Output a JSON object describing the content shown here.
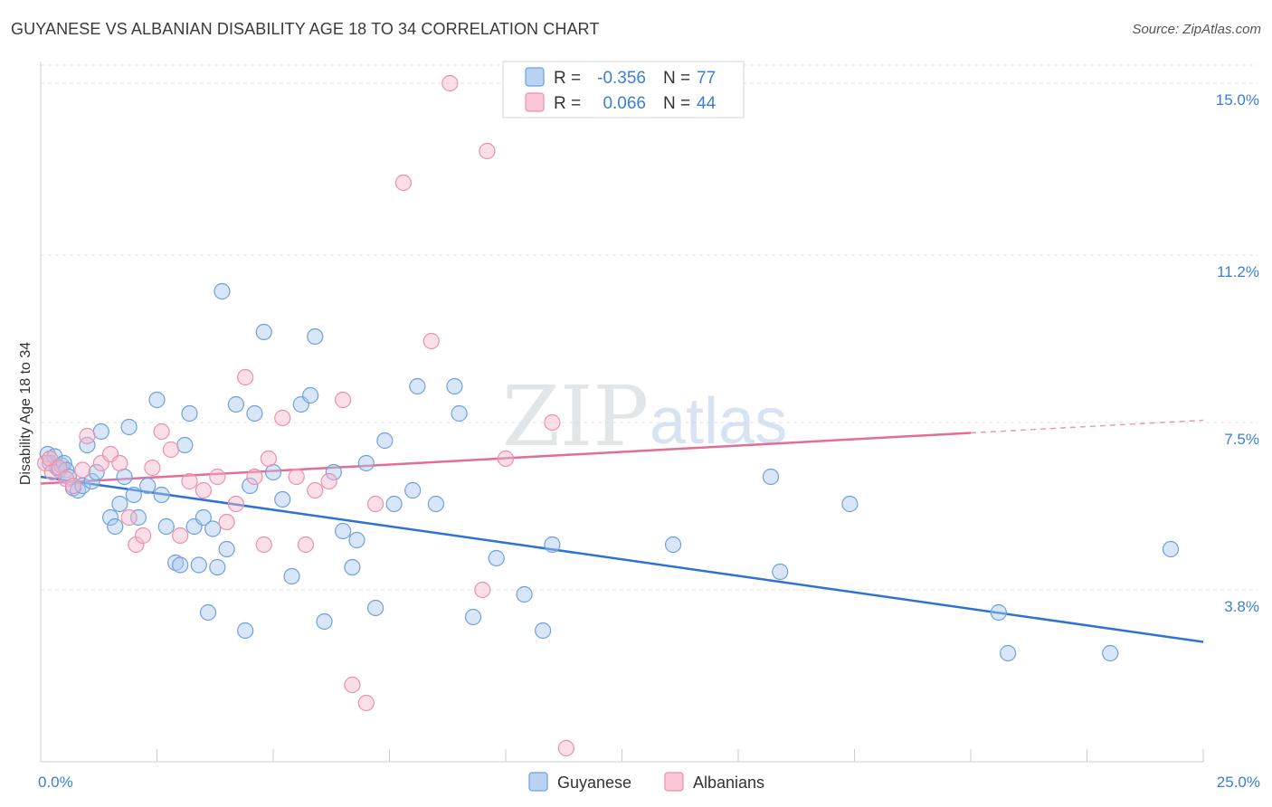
{
  "title": "GUYANESE VS ALBANIAN DISABILITY AGE 18 TO 34 CORRELATION CHART",
  "source": "Source: ZipAtlas.com",
  "colors": {
    "guyanese_fill": "#a9c8f0",
    "guyanese_stroke": "#6fa0dd",
    "guyanese_line": "#2e73d3",
    "albanians_fill": "#f7b9cc",
    "albanians_stroke": "#ec8fab",
    "albanians_line": "#e46d95",
    "tick_text": "#3b7fd4",
    "grid": "#e3e3e3"
  },
  "chart_data": {
    "type": "scatter",
    "title": "GUYANESE VS ALBANIAN DISABILITY AGE 18 TO 34 CORRELATION CHART",
    "xlabel": "",
    "ylabel": "Disability Age 18 to 34",
    "xlim": [
      0,
      25
    ],
    "ylim": [
      0,
      15.4
    ],
    "x_tick_labels": [
      {
        "value": 0,
        "label": "0.0%"
      },
      {
        "value": 25,
        "label": "25.0%"
      }
    ],
    "y_ticks": [
      {
        "value": 3.8,
        "label": "3.8%"
      },
      {
        "value": 7.5,
        "label": "7.5%"
      },
      {
        "value": 11.2,
        "label": "11.2%"
      },
      {
        "value": 15.0,
        "label": "15.0%"
      }
    ],
    "x_minor_ticks": [
      2.5,
      5,
      7.5,
      10,
      12.5,
      15,
      17.5,
      20,
      22.5,
      25
    ],
    "watermark": {
      "part1": "ZIP",
      "part2": "atlas"
    },
    "legend": {
      "rows": [
        {
          "r_label": "R =",
          "r_value": "-0.356",
          "n_label": "N =",
          "n_value": "77"
        },
        {
          "r_label": "R =",
          "r_value": "0.066",
          "n_label": "N =",
          "n_value": "44"
        }
      ]
    },
    "series": [
      {
        "name": "Guyanese",
        "points": [
          [
            0.15,
            6.8
          ],
          [
            0.2,
            6.6
          ],
          [
            0.3,
            6.75
          ],
          [
            0.35,
            6.5
          ],
          [
            0.4,
            6.45
          ],
          [
            0.45,
            6.55
          ],
          [
            0.5,
            6.6
          ],
          [
            0.55,
            6.45
          ],
          [
            0.6,
            6.3
          ],
          [
            0.7,
            6.05
          ],
          [
            0.8,
            6.0
          ],
          [
            0.9,
            6.1
          ],
          [
            1.0,
            7.0
          ],
          [
            1.1,
            6.2
          ],
          [
            1.2,
            6.4
          ],
          [
            1.3,
            7.3
          ],
          [
            1.5,
            5.4
          ],
          [
            1.6,
            5.2
          ],
          [
            1.7,
            5.7
          ],
          [
            1.8,
            6.3
          ],
          [
            1.9,
            7.4
          ],
          [
            2.0,
            5.9
          ],
          [
            2.1,
            5.4
          ],
          [
            2.3,
            6.1
          ],
          [
            2.5,
            8.0
          ],
          [
            2.6,
            5.9
          ],
          [
            2.7,
            5.2
          ],
          [
            2.9,
            4.4
          ],
          [
            3.0,
            4.35
          ],
          [
            3.1,
            7.0
          ],
          [
            3.2,
            7.7
          ],
          [
            3.3,
            5.2
          ],
          [
            3.4,
            4.35
          ],
          [
            3.5,
            5.4
          ],
          [
            3.6,
            3.3
          ],
          [
            3.7,
            5.15
          ],
          [
            3.8,
            4.3
          ],
          [
            4.0,
            4.7
          ],
          [
            4.2,
            7.9
          ],
          [
            4.4,
            2.9
          ],
          [
            4.5,
            6.1
          ],
          [
            4.6,
            7.7
          ],
          [
            4.8,
            9.5
          ],
          [
            5.0,
            6.4
          ],
          [
            5.2,
            5.8
          ],
          [
            5.4,
            4.1
          ],
          [
            5.6,
            7.9
          ],
          [
            5.8,
            8.1
          ],
          [
            5.9,
            9.4
          ],
          [
            6.1,
            3.1
          ],
          [
            6.3,
            6.4
          ],
          [
            6.5,
            5.1
          ],
          [
            6.7,
            4.3
          ],
          [
            6.8,
            4.9
          ],
          [
            7.0,
            6.6
          ],
          [
            7.2,
            3.4
          ],
          [
            7.4,
            7.1
          ],
          [
            7.6,
            5.7
          ],
          [
            8.0,
            6.0
          ],
          [
            8.1,
            8.3
          ],
          [
            8.5,
            5.7
          ],
          [
            8.9,
            8.3
          ],
          [
            9.0,
            7.7
          ],
          [
            9.3,
            3.2
          ],
          [
            9.8,
            4.5
          ],
          [
            10.4,
            3.7
          ],
          [
            10.8,
            2.9
          ],
          [
            11.0,
            4.8
          ],
          [
            13.6,
            4.8
          ],
          [
            15.7,
            6.3
          ],
          [
            15.9,
            4.2
          ],
          [
            17.4,
            5.7
          ],
          [
            20.6,
            3.3
          ],
          [
            20.8,
            2.4
          ],
          [
            23.0,
            2.4
          ],
          [
            24.3,
            4.7
          ],
          [
            3.9,
            10.4
          ]
        ],
        "trend": {
          "x_start": 0,
          "y_start": 6.3,
          "x_end": 25,
          "y_end": 2.65
        }
      },
      {
        "name": "Albanians",
        "points": [
          [
            0.1,
            6.6
          ],
          [
            0.2,
            6.7
          ],
          [
            0.25,
            6.4
          ],
          [
            0.4,
            6.5
          ],
          [
            0.55,
            6.25
          ],
          [
            0.7,
            6.1
          ],
          [
            0.9,
            6.45
          ],
          [
            1.0,
            7.2
          ],
          [
            1.3,
            6.6
          ],
          [
            1.5,
            6.8
          ],
          [
            1.7,
            6.6
          ],
          [
            1.9,
            5.4
          ],
          [
            2.05,
            4.8
          ],
          [
            2.2,
            5.0
          ],
          [
            2.4,
            6.5
          ],
          [
            2.6,
            7.3
          ],
          [
            2.8,
            6.9
          ],
          [
            3.0,
            5.0
          ],
          [
            3.2,
            6.2
          ],
          [
            3.5,
            6.0
          ],
          [
            3.8,
            6.3
          ],
          [
            4.0,
            5.3
          ],
          [
            4.2,
            5.7
          ],
          [
            4.4,
            8.5
          ],
          [
            4.6,
            6.3
          ],
          [
            4.8,
            4.8
          ],
          [
            4.9,
            6.7
          ],
          [
            5.2,
            7.6
          ],
          [
            5.5,
            6.3
          ],
          [
            5.7,
            4.8
          ],
          [
            5.9,
            6.0
          ],
          [
            6.2,
            6.2
          ],
          [
            6.5,
            8.0
          ],
          [
            6.7,
            1.7
          ],
          [
            7.0,
            1.3
          ],
          [
            7.2,
            5.7
          ],
          [
            7.8,
            12.8
          ],
          [
            8.4,
            9.3
          ],
          [
            8.8,
            15.0
          ],
          [
            9.6,
            13.5
          ],
          [
            9.5,
            3.8
          ],
          [
            10.0,
            6.7
          ],
          [
            11.0,
            7.5
          ],
          [
            11.3,
            0.3
          ]
        ],
        "trend": {
          "x_start": 0,
          "y_start": 6.15,
          "x_end": 25,
          "y_end": 7.55,
          "solid_until_x": 20
        }
      }
    ]
  }
}
